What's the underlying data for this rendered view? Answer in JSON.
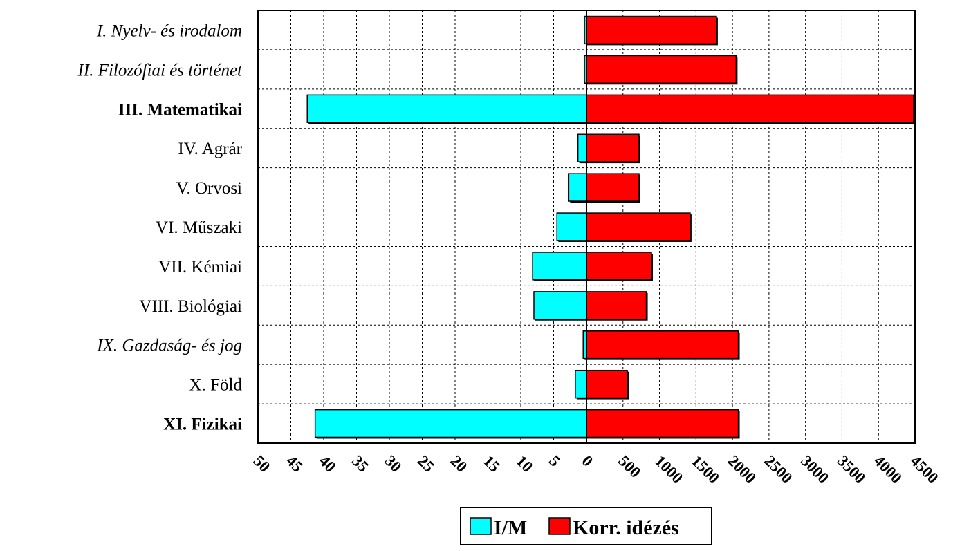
{
  "chart_data": {
    "type": "bar",
    "orientation": "horizontal",
    "categories": [
      "I. Nyelv- és irodalom",
      "II. Filozófiai és történet",
      "III. Matematikai",
      "IV. Agrár",
      "V. Orvosi",
      "VI. Műszaki",
      "VII. Kémiai",
      "VIII. Biológiai",
      "IX. Gazdaság- és jog",
      "X. Föld",
      "XI. Fizikai"
    ],
    "category_styles": [
      "italic",
      "italic",
      "bold",
      "normal",
      "normal",
      "normal",
      "normal",
      "normal",
      "italic",
      "normal",
      "bold"
    ],
    "series": [
      {
        "name": "I/M",
        "color": "#00ffff",
        "side": "left",
        "axis_range": [
          0,
          50
        ],
        "ticks": [
          "50",
          "45",
          "40",
          "35",
          "30",
          "25",
          "20",
          "15",
          "10",
          "5",
          "0"
        ],
        "values": [
          0.3,
          0.3,
          42.5,
          1.3,
          2.7,
          4.5,
          8.2,
          8.0,
          0.5,
          1.7,
          41.3
        ]
      },
      {
        "name": "Korr. idézés",
        "color": "#ff0000",
        "side": "right",
        "axis_range": [
          0,
          4500
        ],
        "ticks": [
          "0",
          "500",
          "1000",
          "1500",
          "2000",
          "2500",
          "3000",
          "3500",
          "4000",
          "4500"
        ],
        "values": [
          1780,
          2050,
          4480,
          720,
          720,
          1420,
          890,
          820,
          2080,
          560,
          2080
        ]
      }
    ],
    "grid": true,
    "legend_position": "bottom"
  }
}
